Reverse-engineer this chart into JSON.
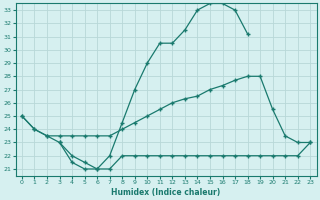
{
  "xlabel": "Humidex (Indice chaleur)",
  "bg_color": "#d6f0f0",
  "grid_color": "#c8e8e8",
  "line_color": "#1a7a6e",
  "xlim": [
    -0.5,
    23.5
  ],
  "ylim": [
    20.5,
    33.5
  ],
  "xticks": [
    0,
    1,
    2,
    3,
    4,
    5,
    6,
    7,
    8,
    9,
    10,
    11,
    12,
    13,
    14,
    15,
    16,
    17,
    18,
    19,
    20,
    21,
    22,
    23
  ],
  "yticks": [
    21,
    22,
    23,
    24,
    25,
    26,
    27,
    28,
    29,
    30,
    31,
    32,
    33
  ],
  "line1_x": [
    0,
    1,
    2,
    3,
    4,
    5,
    6,
    7,
    8,
    9,
    10,
    11,
    12,
    13,
    14,
    15,
    16,
    17,
    18
  ],
  "line1_y": [
    25.0,
    24.0,
    23.5,
    23.0,
    21.5,
    21.0,
    21.0,
    22.0,
    24.5,
    27.0,
    29.0,
    30.5,
    30.5,
    31.5,
    33.0,
    33.5,
    33.5,
    33.0,
    31.2
  ],
  "line2_x": [
    0,
    1,
    2,
    3,
    4,
    5,
    6,
    7,
    8,
    9,
    10,
    11,
    12,
    13,
    14,
    15,
    16,
    17,
    18,
    19,
    20,
    21,
    22,
    23
  ],
  "line2_y": [
    25.0,
    24.0,
    23.5,
    23.5,
    23.5,
    23.5,
    23.5,
    23.5,
    24.0,
    24.5,
    25.0,
    25.5,
    26.0,
    26.3,
    26.5,
    27.0,
    27.3,
    27.7,
    28.0,
    28.0,
    25.5,
    23.5,
    23.0,
    23.0
  ],
  "line3_x": [
    3,
    4,
    5,
    6,
    7,
    8,
    9,
    10,
    11,
    12,
    13,
    14,
    15,
    16,
    17,
    18,
    19,
    20,
    21,
    22,
    23
  ],
  "line3_y": [
    23.0,
    22.0,
    21.5,
    21.0,
    21.0,
    22.0,
    22.0,
    22.0,
    22.0,
    22.0,
    22.0,
    22.0,
    22.0,
    22.0,
    22.0,
    22.0,
    22.0,
    22.0,
    22.0,
    22.0,
    23.0
  ]
}
